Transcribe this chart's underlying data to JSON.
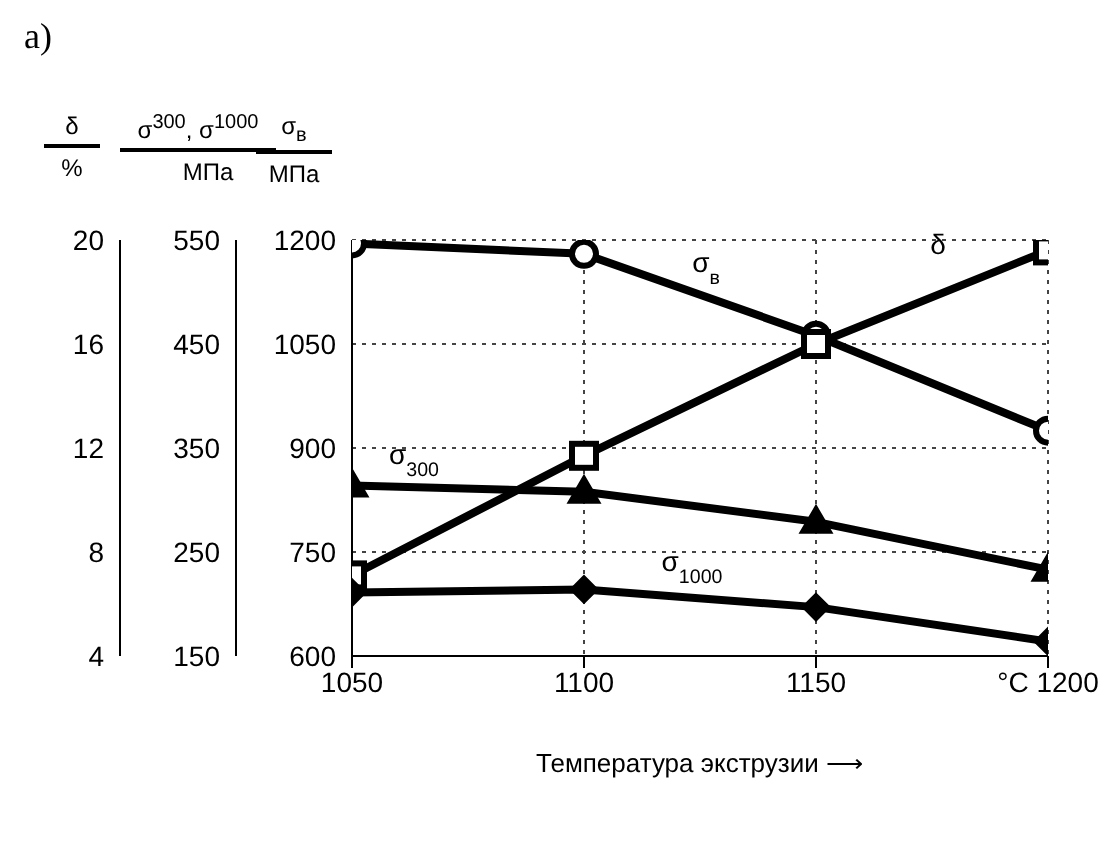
{
  "chart_data": {
    "type": "line",
    "title": "а)",
    "xlabel": "Температура экструзии ⟶",
    "ylabel": "σ$_{в}$\nМПа",
    "y2label": "σ$^{300}$, σ$^{1000}$\nМПа",
    "y3label": "δ\n%",
    "x": [
      1050,
      1100,
      1150,
      1200
    ],
    "xlim": [
      1050,
      1200
    ],
    "xticks": [
      1050,
      1100,
      1150,
      {
        "value": 1200,
        "label": "°C 1200"
      }
    ],
    "ylim": [
      600,
      1200
    ],
    "yticks": [
      600,
      750,
      900,
      1050,
      1200
    ],
    "y2lim": [
      150,
      550
    ],
    "y2ticks": [
      150,
      250,
      350,
      450,
      550
    ],
    "y3lim": [
      4,
      20
    ],
    "y3ticks": [
      4,
      8,
      12,
      16,
      20
    ],
    "grid": true,
    "line_style": "solid",
    "series": [
      {
        "name": "σ$_{в}$",
        "color": "#000000",
        "axis": "y",
        "marker": "circle",
        "values": [
          1195,
          1180,
          1062,
          925
        ]
      },
      {
        "name": "δ",
        "color": "#000000",
        "axis": "y3",
        "marker": "square",
        "values": [
          7.1,
          11.7,
          16.0,
          19.6
        ]
      },
      {
        "name": "σ$_{300}$",
        "color": "#000000",
        "axis": "y2",
        "marker": "triangle",
        "values": [
          314,
          308,
          279,
          233
        ]
      },
      {
        "name": "σ$_{1000}$",
        "color": "#000000",
        "axis": "y2",
        "marker": "diamond",
        "values": [
          211,
          214,
          197,
          164
        ]
      }
    ]
  }
}
